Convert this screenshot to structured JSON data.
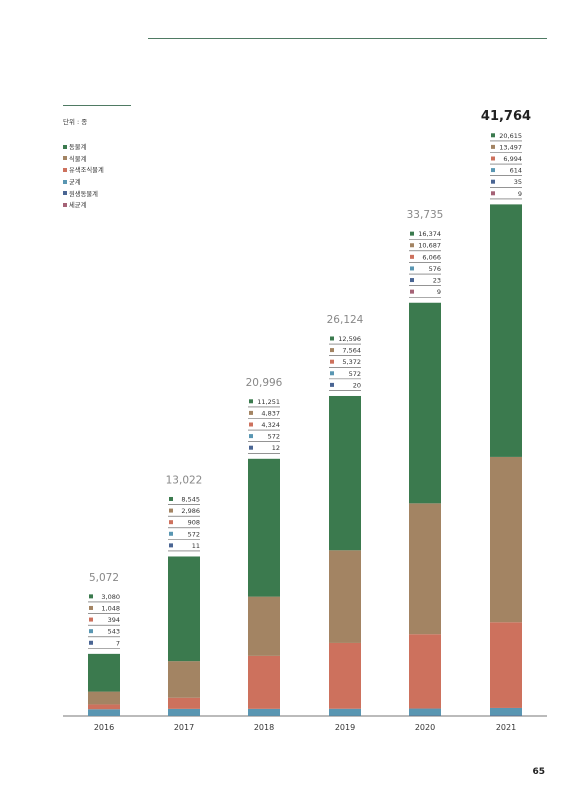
{
  "page": {
    "unit_label": "단위 : 종",
    "page_number": "65"
  },
  "colors": {
    "animal": "#3b7a4e",
    "plant": "#a38463",
    "chromista": "#cd715d",
    "fungi": "#5996b2",
    "protozoa": "#4a6593",
    "bacteria": "#a56276",
    "axis": "#777777",
    "rule": "#4f7a63"
  },
  "chart_data": {
    "type": "bar",
    "stacked": true,
    "categories": [
      "2016",
      "2017",
      "2018",
      "2019",
      "2020",
      "2021"
    ],
    "totals": [
      "5,072",
      "13,022",
      "20,996",
      "26,124",
      "33,735",
      "41,764"
    ],
    "total_values": [
      5072,
      13022,
      20996,
      26124,
      33735,
      41764
    ],
    "series": [
      {
        "name": "동물계",
        "color_key": "animal",
        "values": [
          3080,
          8545,
          11251,
          12596,
          16374,
          20615
        ],
        "labels": [
          "3,080",
          "8,545",
          "11,251",
          "12,596",
          "16,374",
          "20,615"
        ]
      },
      {
        "name": "식물계",
        "color_key": "plant",
        "values": [
          1048,
          2986,
          4837,
          7564,
          10687,
          13497
        ],
        "labels": [
          "1,048",
          "2,986",
          "4,837",
          "7,564",
          "10,687",
          "13,497"
        ]
      },
      {
        "name": "유색조식물계",
        "color_key": "chromista",
        "values": [
          394,
          908,
          4324,
          5372,
          6066,
          6994
        ],
        "labels": [
          "394",
          "908",
          "4,324",
          "5,372",
          "6,066",
          "6,994"
        ]
      },
      {
        "name": "균계",
        "color_key": "fungi",
        "values": [
          543,
          572,
          572,
          572,
          576,
          614
        ],
        "labels": [
          "543",
          "572",
          "572",
          "572",
          "576",
          "614"
        ]
      },
      {
        "name": "원생동물계",
        "color_key": "protozoa",
        "values": [
          7,
          11,
          12,
          20,
          23,
          35
        ],
        "labels": [
          "7",
          "11",
          "12",
          "20",
          "23",
          "35"
        ]
      },
      {
        "name": "세균계",
        "color_key": "bacteria",
        "values": [
          null,
          null,
          null,
          null,
          9,
          9
        ],
        "labels": [
          "",
          "",
          "",
          "",
          "9",
          "9"
        ]
      }
    ],
    "legend_position": "top-left",
    "grid": false
  }
}
